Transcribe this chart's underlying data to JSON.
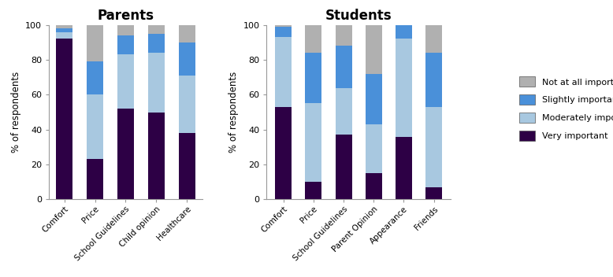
{
  "parents": {
    "title": "Parents",
    "categories": [
      "Comfort",
      "Price",
      "School Guidelines",
      "Child opinion",
      "Healthcare"
    ],
    "very_important": [
      92,
      23,
      52,
      50,
      38
    ],
    "moderately_important": [
      4,
      37,
      31,
      34,
      33
    ],
    "slightly_important": [
      2,
      19,
      11,
      11,
      19
    ],
    "not_important": [
      2,
      21,
      6,
      5,
      10
    ]
  },
  "students": {
    "title": "Students",
    "categories": [
      "Comfort",
      "Price",
      "School Guidelines",
      "Parent Opinion",
      "Appearance",
      "Friends"
    ],
    "very_important": [
      53,
      10,
      37,
      15,
      36,
      7
    ],
    "moderately_important": [
      40,
      45,
      27,
      28,
      56,
      46
    ],
    "slightly_important": [
      6,
      29,
      24,
      29,
      8,
      31
    ],
    "not_important": [
      1,
      16,
      12,
      28,
      0,
      16
    ]
  },
  "colors": {
    "very_important": "#2d0045",
    "moderately_important": "#a8c8e0",
    "slightly_important": "#4a90d9",
    "not_important": "#b0b0b0"
  },
  "ylabel": "% of respondents",
  "ylim": [
    0,
    100
  ],
  "yticks": [
    0,
    20,
    40,
    60,
    80,
    100
  ],
  "legend_labels": [
    "Not at all important",
    "Slightly important",
    "Moderately important",
    "Very important"
  ]
}
